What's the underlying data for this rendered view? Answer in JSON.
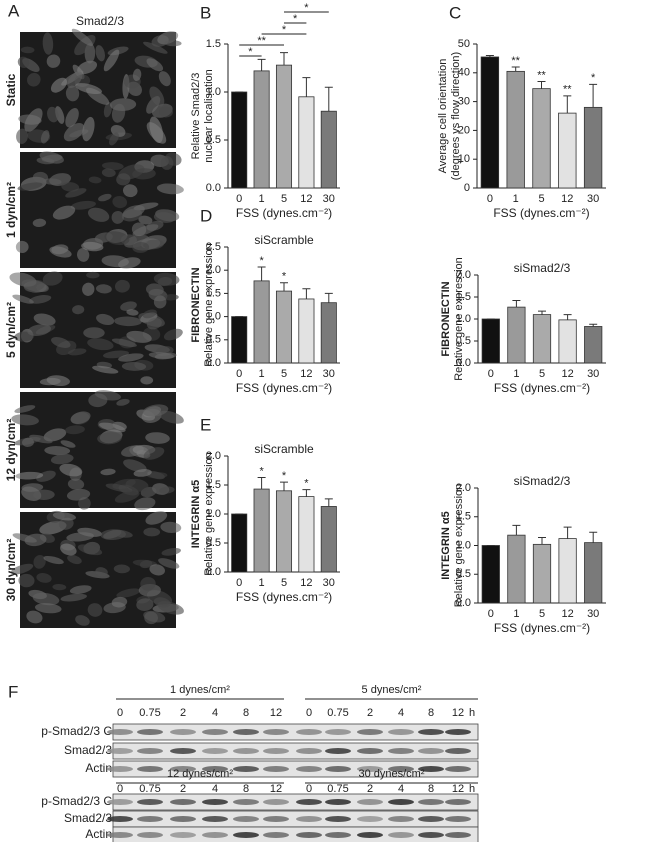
{
  "figure": {
    "panel_a": {
      "label": "A",
      "title": "Smad2/3",
      "rows": [
        "Static",
        "1 dyn/cm²",
        "5 dyn/cm²",
        "12 dyn/cm²",
        "30 dyn/cm²"
      ]
    },
    "panel_f": {
      "label": "F",
      "groups": [
        "1 dynes/cm²",
        "5 dynes/cm²",
        "12 dynes/cm²",
        "30 dynes/cm²"
      ],
      "timepoints": [
        "0",
        "0.75",
        "2",
        "4",
        "8",
        "12"
      ],
      "unit": "h",
      "rows": [
        "p-Smad2/3 C",
        "Smad2/3",
        "Actin"
      ]
    }
  },
  "chart_data": [
    {
      "type": "bar",
      "panel": "B",
      "ylabel": [
        "Relative Smad2/3",
        "nuclear localisation"
      ],
      "xlabel": "FSS (dynes.cm⁻²)",
      "categories": [
        "0",
        "1",
        "5",
        "12",
        "30"
      ],
      "values": [
        1.0,
        1.22,
        1.28,
        0.95,
        0.8
      ],
      "errors": [
        0,
        0.12,
        0.13,
        0.2,
        0.25
      ],
      "colors": [
        "#111111",
        "#9a9a9a",
        "#aaaaaa",
        "#e2e2e2",
        "#7a7a7a"
      ],
      "ylim": [
        0,
        1.5
      ],
      "yticks": [
        {
          "value": 0,
          "label": "0.0"
        },
        {
          "value": 0.5,
          "label": "0.5"
        },
        {
          "value": 1,
          "label": "1.0"
        },
        {
          "value": 1.5,
          "label": "1.5"
        }
      ],
      "significance": [
        "*",
        "**",
        "*",
        "*",
        "*"
      ]
    },
    {
      "type": "bar",
      "panel": "C",
      "ylabel": [
        "Average cell orientation",
        "(degrees vs flow direction)"
      ],
      "xlabel": "FSS (dynes.cm⁻²)",
      "categories": [
        "0",
        "1",
        "5",
        "12",
        "30"
      ],
      "values": [
        45.5,
        40.5,
        34.5,
        26,
        28
      ],
      "errors": [
        0.5,
        1.5,
        2.5,
        6,
        8
      ],
      "colors": [
        "#111111",
        "#9a9a9a",
        "#aaaaaa",
        "#e2e2e2",
        "#7a7a7a"
      ],
      "ylim": [
        0,
        50
      ],
      "yticks": [
        0,
        10,
        20,
        30,
        40,
        50
      ],
      "stars": [
        null,
        "**",
        "**",
        "**",
        "*"
      ]
    },
    {
      "type": "bar",
      "panel": "D",
      "title": "siScramble",
      "ylabel_gene": "FIBRONECTIN",
      "ylabel": [
        "Relative gene expression"
      ],
      "xlabel": "FSS (dynes.cm⁻²)",
      "categories": [
        "0",
        "1",
        "5",
        "12",
        "30"
      ],
      "values": [
        1.0,
        1.77,
        1.55,
        1.38,
        1.3
      ],
      "errors": [
        0,
        0.3,
        0.18,
        0.22,
        0.2
      ],
      "colors": [
        "#111111",
        "#9a9a9a",
        "#aaaaaa",
        "#e2e2e2",
        "#7a7a7a"
      ],
      "ylim": [
        0,
        2.5
      ],
      "yticks": [
        {
          "value": 0,
          "label": "0.0"
        },
        {
          "value": 0.5,
          "label": "0.5"
        },
        {
          "value": 1,
          "label": "1.0"
        },
        {
          "value": 1.5,
          "label": "1.5"
        },
        {
          "value": 2,
          "label": "2.0"
        },
        {
          "value": 2.5,
          "label": "2.5"
        }
      ],
      "stars": [
        null,
        "*",
        "*",
        null,
        null
      ]
    },
    {
      "type": "bar",
      "title": "siSmad2/3",
      "ylabel_gene": "FIBRONECTIN",
      "ylabel": [
        "Relative gene expression"
      ],
      "xlabel": "FSS (dynes.cm⁻²)",
      "categories": [
        "0",
        "1",
        "5",
        "12",
        "30"
      ],
      "values": [
        1.0,
        1.27,
        1.1,
        0.98,
        0.83
      ],
      "errors": [
        0,
        0.15,
        0.08,
        0.12,
        0.05
      ],
      "colors": [
        "#111111",
        "#9a9a9a",
        "#aaaaaa",
        "#e2e2e2",
        "#7a7a7a"
      ],
      "ylim": [
        0,
        2
      ],
      "yticks": [
        {
          "value": 0,
          "label": "0.0"
        },
        {
          "value": 0.5,
          "label": "0.5"
        },
        {
          "value": 1,
          "label": "1.0"
        },
        {
          "value": 1.5,
          "label": "1.5"
        },
        {
          "value": 2,
          "label": "2.0"
        }
      ]
    },
    {
      "type": "bar",
      "panel": "E",
      "title": "siScramble",
      "ylabel_gene": "INTEGRIN α5",
      "ylabel": [
        "Relative gene expression"
      ],
      "xlabel": "FSS (dynes.cm⁻²)",
      "categories": [
        "0",
        "1",
        "5",
        "12",
        "30"
      ],
      "values": [
        1.0,
        1.43,
        1.4,
        1.3,
        1.13
      ],
      "errors": [
        0,
        0.2,
        0.15,
        0.12,
        0.13
      ],
      "colors": [
        "#111111",
        "#9a9a9a",
        "#aaaaaa",
        "#e2e2e2",
        "#7a7a7a"
      ],
      "ylim": [
        0,
        2
      ],
      "yticks": [
        {
          "value": 0,
          "label": "0.0"
        },
        {
          "value": 0.5,
          "label": "0.5"
        },
        {
          "value": 1,
          "label": "1.0"
        },
        {
          "value": 1.5,
          "label": "1.5"
        },
        {
          "value": 2,
          "label": "2.0"
        }
      ],
      "stars": [
        null,
        "*",
        "*",
        "*",
        null
      ]
    },
    {
      "type": "bar",
      "title": "siSmad2/3",
      "ylabel_gene": "INTEGRIN α5",
      "ylabel": [
        "Relative gene expression"
      ],
      "xlabel": "FSS (dynes.cm⁻²)",
      "categories": [
        "0",
        "1",
        "5",
        "12",
        "30"
      ],
      "values": [
        1.0,
        1.18,
        1.02,
        1.12,
        1.05
      ],
      "errors": [
        0,
        0.17,
        0.12,
        0.2,
        0.18
      ],
      "colors": [
        "#111111",
        "#9a9a9a",
        "#aaaaaa",
        "#e2e2e2",
        "#7a7a7a"
      ],
      "ylim": [
        0,
        2
      ],
      "yticks": [
        {
          "value": 0,
          "label": "0.0"
        },
        {
          "value": 0.5,
          "label": "0.5"
        },
        {
          "value": 1,
          "label": "1.0"
        },
        {
          "value": 1.5,
          "label": "1.5"
        },
        {
          "value": 2,
          "label": "2.0"
        }
      ]
    }
  ]
}
